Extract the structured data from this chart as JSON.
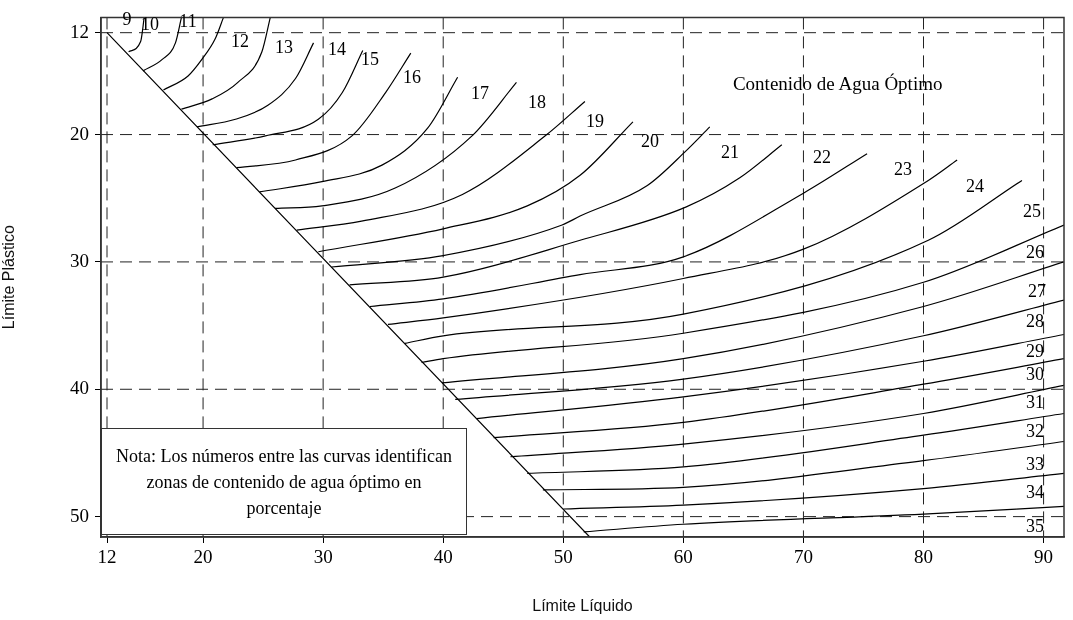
{
  "chart_data": {
    "type": "line",
    "title": "Contenido de Agua Óptimo",
    "xlabel": "Límite Líquido",
    "ylabel": "Límite Plástico",
    "xlim": [
      11.5,
      91.7
    ],
    "ylim": [
      51.6,
      10.8
    ],
    "xticks": [
      12,
      20,
      30,
      40,
      50,
      60,
      70,
      80,
      90
    ],
    "yticks": [
      12,
      20,
      30,
      40,
      50
    ],
    "grid": true,
    "legend": false,
    "marker": "none",
    "line_style": "solid",
    "series": [
      {
        "color": "#000000",
        "x": [
          12,
          52.2
        ],
        "values": [
          12,
          51.6
        ]
      },
      {
        "color": "#000000",
        "x": [
          13.8,
          14.8,
          15.1
        ],
        "values": [
          13.5,
          12.7,
          10.8
        ]
      },
      {
        "color": "#000000",
        "x": [
          15,
          16.6,
          17.7,
          18.2
        ],
        "values": [
          15,
          14.1,
          12.8,
          10.8
        ]
      },
      {
        "color": "#000000",
        "x": [
          16.7,
          18.75,
          19.9,
          21,
          21.7
        ],
        "values": [
          16.5,
          15.4,
          14.1,
          12.5,
          10.8
        ]
      },
      {
        "color": "#000000",
        "x": [
          18.2,
          20.75,
          22.9,
          24.9,
          25.6
        ],
        "values": [
          18,
          17.2,
          15.9,
          13.5,
          10.8
        ]
      },
      {
        "color": "#000000",
        "x": [
          19.5,
          22.7,
          25.4,
          27.7,
          29.2
        ],
        "values": [
          19.4,
          18.8,
          17.7,
          15.6,
          12.8
        ]
      },
      {
        "color": "#000000",
        "x": [
          20.8,
          25.2,
          29.6,
          31.6,
          33.3
        ],
        "values": [
          20.8,
          20.1,
          18.8,
          16.7,
          13.4
        ]
      },
      {
        "color": "#000000",
        "x": [
          22.8,
          27.7,
          32.4,
          35.2,
          37.3
        ],
        "values": [
          22.6,
          22,
          20.1,
          16.7,
          13.6
        ]
      },
      {
        "color": "#000000",
        "x": [
          24.7,
          29.9,
          34.9,
          38.7,
          41.2
        ],
        "values": [
          24.5,
          23.7,
          22.4,
          19.5,
          15.5
        ]
      },
      {
        "color": "#000000",
        "x": [
          26,
          29.9,
          36,
          42.4,
          46.1
        ],
        "values": [
          25.8,
          25.6,
          24.2,
          20.1,
          15.9
        ]
      },
      {
        "color": "#000000",
        "x": [
          27.8,
          33.2,
          41.6,
          48.5,
          51.8
        ],
        "values": [
          27.5,
          26.8,
          24.7,
          20.1,
          17.4
        ]
      },
      {
        "color": "#000000",
        "x": [
          29.6,
          40,
          47,
          51.4,
          55.8
        ],
        "values": [
          29.2,
          27.4,
          25.6,
          23.2,
          19
        ]
      },
      {
        "color": "#000000",
        "x": [
          30.7,
          40,
          49.9,
          51.4,
          57,
          60.2,
          62.2
        ],
        "values": [
          30.4,
          29.5,
          27.1,
          26.4,
          24,
          21.3,
          19.4
        ]
      },
      {
        "color": "#000000",
        "x": [
          32.2,
          40,
          51.4,
          60.2,
          64.7,
          68.2
        ],
        "values": [
          31.8,
          31.2,
          28.3,
          25.7,
          23.4,
          20.8
        ]
      },
      {
        "color": "#000000",
        "x": [
          33.9,
          40,
          51.4,
          60,
          70,
          75.3
        ],
        "values": [
          33.5,
          32.9,
          31,
          29.6,
          24.6,
          21.5
        ]
      },
      {
        "color": "#000000",
        "x": [
          35.4,
          40,
          60,
          70,
          80.4,
          82.8
        ],
        "values": [
          34.9,
          34.4,
          31.3,
          29,
          23.6,
          22
        ]
      },
      {
        "color": "#000000",
        "x": [
          36.8,
          40,
          60,
          80.4,
          88.2
        ],
        "values": [
          36.4,
          35.8,
          34.1,
          28.3,
          23.6
        ]
      },
      {
        "color": "#000000",
        "x": [
          38.2,
          40,
          60,
          80,
          91.7
        ],
        "values": [
          37.9,
          37.6,
          35.6,
          31.6,
          27.1
        ]
      },
      {
        "color": "#000000",
        "x": [
          39.9,
          60,
          80,
          91.7
        ],
        "values": [
          39.5,
          37.6,
          33.5,
          30
        ]
      },
      {
        "color": "#000000",
        "x": [
          41,
          60,
          80,
          91.7
        ],
        "values": [
          40.8,
          39.2,
          35.8,
          33
        ]
      },
      {
        "color": "#000000",
        "x": [
          42.8,
          60,
          80,
          91.7
        ],
        "values": [
          42.3,
          40.6,
          37.8,
          35.7
        ]
      },
      {
        "color": "#000000",
        "x": [
          44.2,
          60,
          80,
          91.7
        ],
        "values": [
          43.8,
          42.6,
          39.6,
          37.6
        ]
      },
      {
        "color": "#000000",
        "x": [
          45.6,
          60,
          80,
          91.7
        ],
        "values": [
          45.3,
          44.3,
          41.9,
          39.7
        ]
      },
      {
        "color": "#000000",
        "x": [
          47,
          60,
          80,
          91.7
        ],
        "values": [
          46.6,
          46.1,
          43.6,
          41.9
        ]
      },
      {
        "color": "#000000",
        "x": [
          48.3,
          60,
          80,
          91.7
        ],
        "values": [
          47.9,
          47.7,
          45.6,
          44.1
        ]
      },
      {
        "color": "#000000",
        "x": [
          50,
          60,
          80,
          91.7
        ],
        "values": [
          49.4,
          49.1,
          47.8,
          46.6
        ]
      },
      {
        "color": "#000000",
        "x": [
          51.7,
          60,
          80,
          91.7
        ],
        "values": [
          51.2,
          50.6,
          49.8,
          49.2
        ]
      }
    ],
    "annotations": [
      "9",
      "10",
      "11",
      "12",
      "13",
      "14",
      "15",
      "16",
      "17",
      "18",
      "19",
      "20",
      "21",
      "22",
      "23",
      "24",
      "25",
      "26",
      "27",
      "28",
      "29",
      "30",
      "31",
      "32",
      "33",
      "34",
      "35",
      "Nota: Los números entre las curvas identifican zonas de contenido de agua óptimo en porcentaje"
    ]
  }
}
